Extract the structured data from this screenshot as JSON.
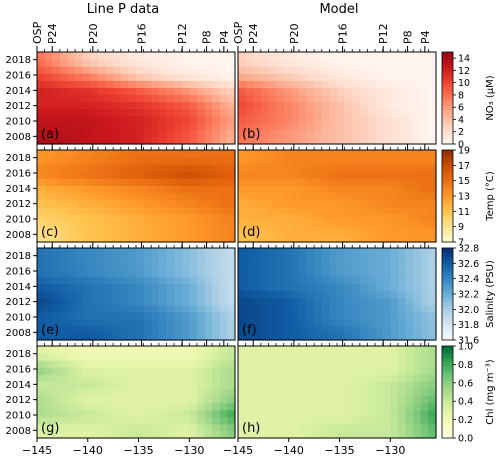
{
  "figure": {
    "column_titles": [
      "Line P data",
      "Model"
    ],
    "station_labels": [
      {
        "label": "OSP",
        "lon": -145.0
      },
      {
        "label": "P24",
        "lon": -143.5
      },
      {
        "label": "P20",
        "lon": -139.5
      },
      {
        "label": "P16",
        "lon": -134.7
      },
      {
        "label": "P12",
        "lon": -130.7
      },
      {
        "label": "P8",
        "lon": -128.3
      },
      {
        "label": "P4",
        "lon": -126.6
      }
    ],
    "x_tick_labels": [
      "−145",
      "−140",
      "−135",
      "−130"
    ]
  },
  "chart_data": [
    {
      "type": "heatmap",
      "panel": "(a)",
      "source": "Line P data",
      "variable": "NO3",
      "x": [
        -145,
        -140,
        -135,
        -130,
        -126
      ],
      "y": [
        2008,
        2010,
        2012,
        2014,
        2016,
        2018
      ],
      "approx_values": [
        [
          14,
          13,
          12,
          9,
          5
        ],
        [
          13,
          13,
          12,
          10,
          6
        ],
        [
          12,
          12,
          11,
          9,
          5
        ],
        [
          12,
          11,
          9,
          6,
          3
        ],
        [
          10,
          7,
          3,
          1,
          0
        ],
        [
          8,
          3,
          1,
          0,
          0
        ]
      ],
      "xlim": [
        -145,
        -125.5
      ],
      "ylim": [
        2007,
        2019
      ],
      "y_tick_labels": [
        "2008",
        "2010",
        "2012",
        "2014",
        "2016",
        "2018"
      ],
      "colorbar": {
        "label": "NO₃ (μM)",
        "ticks": [
          "0",
          "2",
          "4",
          "6",
          "8",
          "10",
          "12",
          "14"
        ],
        "range": [
          0,
          15
        ]
      }
    },
    {
      "type": "heatmap",
      "panel": "(b)",
      "source": "Model",
      "variable": "NO3",
      "x": [
        -145,
        -140,
        -135,
        -130,
        -126
      ],
      "y": [
        2008,
        2010,
        2012,
        2014,
        2016,
        2018
      ],
      "approx_values": [
        [
          8,
          6,
          4,
          2,
          0
        ],
        [
          9,
          7,
          4,
          2,
          0
        ],
        [
          10,
          7,
          4,
          1,
          0
        ],
        [
          9,
          6,
          3,
          1,
          0
        ],
        [
          5,
          3,
          1,
          0,
          0
        ],
        [
          3,
          1,
          0,
          0,
          0
        ]
      ],
      "xlim": [
        -145,
        -125.5
      ],
      "ylim": [
        2007,
        2019
      ]
    },
    {
      "type": "heatmap",
      "panel": "(c)",
      "source": "Line P data",
      "variable": "Temp",
      "x": [
        -145,
        -140,
        -135,
        -130,
        -126
      ],
      "y": [
        2008,
        2010,
        2012,
        2014,
        2016,
        2018
      ],
      "approx_values": [
        [
          9,
          11,
          12,
          13,
          14
        ],
        [
          10,
          11,
          12,
          13,
          14
        ],
        [
          11,
          12,
          13,
          14,
          15
        ],
        [
          12,
          13,
          14,
          15,
          15
        ],
        [
          14,
          15,
          16,
          17,
          16
        ],
        [
          13,
          14,
          15,
          15,
          15
        ]
      ],
      "xlim": [
        -145,
        -125.5
      ],
      "ylim": [
        2007,
        2019
      ],
      "y_tick_labels": [
        "2008",
        "2010",
        "2012",
        "2014",
        "2016",
        "2018"
      ],
      "colorbar": {
        "label": "Temp (°C)",
        "ticks": [
          "7",
          "9",
          "11",
          "13",
          "15",
          "17",
          "19"
        ],
        "range": [
          7,
          19
        ]
      }
    },
    {
      "type": "heatmap",
      "panel": "(d)",
      "source": "Model",
      "variable": "Temp",
      "x": [
        -145,
        -140,
        -135,
        -130,
        -126
      ],
      "y": [
        2008,
        2010,
        2012,
        2014,
        2016,
        2018
      ],
      "approx_values": [
        [
          11,
          12,
          12,
          13,
          13
        ],
        [
          12,
          12,
          13,
          13,
          14
        ],
        [
          12,
          13,
          13,
          14,
          14
        ],
        [
          13,
          13,
          14,
          14,
          15
        ],
        [
          14,
          14,
          15,
          15,
          15
        ],
        [
          13,
          14,
          14,
          14,
          14
        ]
      ],
      "xlim": [
        -145,
        -125.5
      ],
      "ylim": [
        2007,
        2019
      ]
    },
    {
      "type": "heatmap",
      "panel": "(e)",
      "source": "Line P data",
      "variable": "Salinity",
      "x": [
        -145,
        -140,
        -135,
        -130,
        -126
      ],
      "y": [
        2008,
        2010,
        2012,
        2014,
        2016,
        2018
      ],
      "approx_values": [
        [
          32.6,
          32.6,
          32.5,
          32.3,
          32.0
        ],
        [
          32.6,
          32.5,
          32.5,
          32.3,
          32.0
        ],
        [
          32.7,
          32.5,
          32.4,
          32.2,
          31.9
        ],
        [
          32.6,
          32.5,
          32.4,
          32.2,
          31.9
        ],
        [
          32.5,
          32.4,
          32.3,
          32.1,
          31.9
        ],
        [
          32.5,
          32.4,
          32.3,
          32.1,
          31.9
        ]
      ],
      "xlim": [
        -145,
        -125.5
      ],
      "ylim": [
        2007,
        2019
      ],
      "y_tick_labels": [
        "2008",
        "2010",
        "2012",
        "2014",
        "2016",
        "2018"
      ],
      "colorbar": {
        "label": "Salinity (PSU)",
        "ticks": [
          "31.6",
          "31.8",
          "32.0",
          "32.2",
          "32.4",
          "32.6",
          "32.8"
        ],
        "range": [
          31.6,
          32.8
        ]
      }
    },
    {
      "type": "heatmap",
      "panel": "(f)",
      "source": "Model",
      "variable": "Salinity",
      "x": [
        -145,
        -140,
        -135,
        -130,
        -126
      ],
      "y": [
        2008,
        2010,
        2012,
        2014,
        2016,
        2018
      ],
      "approx_values": [
        [
          32.7,
          32.6,
          32.5,
          32.3,
          32.1
        ],
        [
          32.7,
          32.6,
          32.4,
          32.3,
          32.1
        ],
        [
          32.7,
          32.6,
          32.4,
          32.3,
          32.0
        ],
        [
          32.6,
          32.5,
          32.4,
          32.2,
          32.0
        ],
        [
          32.6,
          32.5,
          32.3,
          32.2,
          32.0
        ],
        [
          32.6,
          32.5,
          32.3,
          32.2,
          32.0
        ]
      ],
      "xlim": [
        -145,
        -125.5
      ],
      "ylim": [
        2007,
        2019
      ]
    },
    {
      "type": "heatmap",
      "panel": "(g)",
      "source": "Line P data",
      "variable": "Chl",
      "x": [
        -145,
        -140,
        -135,
        -130,
        -126
      ],
      "y": [
        2008,
        2010,
        2012,
        2014,
        2016,
        2018
      ],
      "approx_values": [
        [
          0.3,
          0.3,
          0.4,
          0.3,
          0.6
        ],
        [
          0.5,
          0.4,
          0.3,
          0.4,
          0.8
        ],
        [
          0.5,
          0.3,
          0.3,
          0.3,
          0.6
        ],
        [
          0.4,
          0.4,
          0.3,
          0.3,
          0.5
        ],
        [
          0.6,
          0.3,
          0.3,
          0.3,
          0.5
        ],
        [
          0.3,
          0.2,
          0.2,
          0.2,
          0.4
        ]
      ],
      "xlim": [
        -145,
        -125.5
      ],
      "ylim": [
        2007,
        2019
      ],
      "x_tick_labels": [
        "−145",
        "−140",
        "−135",
        "−130"
      ],
      "y_tick_labels": [
        "2008",
        "2010",
        "2012",
        "2014",
        "2016",
        "2018"
      ],
      "colorbar": {
        "label": "Chl (mg m⁻³)",
        "ticks": [
          "0.0",
          "0.2",
          "0.4",
          "0.6",
          "0.8",
          "1.0"
        ],
        "range": [
          0,
          1
        ]
      }
    },
    {
      "type": "heatmap",
      "panel": "(h)",
      "source": "Model",
      "variable": "Chl",
      "x": [
        -145,
        -140,
        -135,
        -130,
        -126
      ],
      "y": [
        2008,
        2010,
        2012,
        2014,
        2016,
        2018
      ],
      "approx_values": [
        [
          0.3,
          0.3,
          0.4,
          0.4,
          0.7
        ],
        [
          0.3,
          0.3,
          0.3,
          0.4,
          0.8
        ],
        [
          0.3,
          0.3,
          0.3,
          0.4,
          0.7
        ],
        [
          0.3,
          0.3,
          0.3,
          0.4,
          0.6
        ],
        [
          0.3,
          0.3,
          0.3,
          0.3,
          0.5
        ],
        [
          0.3,
          0.3,
          0.3,
          0.3,
          0.5
        ]
      ],
      "xlim": [
        -145,
        -125.5
      ],
      "ylim": [
        2007,
        2019
      ],
      "x_tick_labels": [
        "−145",
        "−140",
        "−135",
        "−130"
      ]
    }
  ],
  "colors": {
    "NO3": [
      "#fff5f0",
      "#fdd9c8",
      "#fcae91",
      "#fb7a5a",
      "#ef4533",
      "#cb181d",
      "#8f0a12"
    ],
    "Temp": [
      "#ffffd4",
      "#fee391",
      "#fec44f",
      "#fe9929",
      "#ec7014",
      "#cc4c02",
      "#8c2d04"
    ],
    "Salinity": [
      "#f7fbff",
      "#d6e6f4",
      "#abcfe5",
      "#6aaed6",
      "#3787c0",
      "#105ba4",
      "#08306b"
    ],
    "Chl": [
      "#ffffe5",
      "#f7fcb9",
      "#d9f0a3",
      "#addd8e",
      "#78c679",
      "#31a354",
      "#006837"
    ]
  }
}
